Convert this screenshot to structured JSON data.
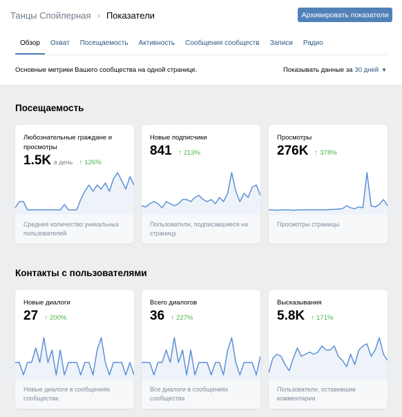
{
  "header": {
    "breadcrumb_parent": "Танцы Спойлерная",
    "breadcrumb_separator": "›",
    "breadcrumb_current": "Показатели",
    "archive_button": "Архивировать показатели"
  },
  "tabs": [
    {
      "label": "Обзор",
      "active": true
    },
    {
      "label": "Охват"
    },
    {
      "label": "Посещаемость"
    },
    {
      "label": "Активность"
    },
    {
      "label": "Сообщения сообществ"
    },
    {
      "label": "Записи"
    },
    {
      "label": "Радио"
    }
  ],
  "description": "Основные метрики Вашего сообщества на одной странице.",
  "period": {
    "label": "Показывать данные за",
    "value": "30 дней"
  },
  "sections": [
    {
      "title": "Посещаемость",
      "cards": [
        {
          "title": "Любознательные граждане и просмотры",
          "value": "1.5K",
          "unit": "в день",
          "growth": "126%",
          "footer": "Среднее количество уникальных пользователей",
          "sparkline": [
            0.1,
            0.25,
            0.25,
            0.05,
            0.05,
            0.05,
            0.05,
            0.05,
            0.05,
            0.05,
            0.05,
            0.05,
            0.18,
            0.05,
            0.05,
            0.05,
            0.3,
            0.5,
            0.65,
            0.5,
            0.65,
            0.55,
            0.7,
            0.5,
            0.8,
            0.95,
            0.75,
            0.55,
            0.85,
            0.65
          ]
        },
        {
          "title": "Новые подписчики",
          "value": "841",
          "unit": "",
          "growth": "213%",
          "footer": "Пользователи, подписавшиеся на страницу",
          "sparkline": [
            0.15,
            0.12,
            0.2,
            0.25,
            0.2,
            0.1,
            0.25,
            0.2,
            0.15,
            0.2,
            0.3,
            0.3,
            0.25,
            0.35,
            0.4,
            0.3,
            0.25,
            0.3,
            0.2,
            0.35,
            0.25,
            0.45,
            0.95,
            0.5,
            0.25,
            0.45,
            0.35,
            0.6,
            0.65,
            0.4
          ]
        },
        {
          "title": "Просмотры",
          "value": "276K",
          "unit": "",
          "growth": "378%",
          "footer": "Просмотры страницы",
          "sparkline": [
            0.05,
            0.05,
            0.04,
            0.05,
            0.05,
            0.05,
            0.04,
            0.05,
            0.05,
            0.05,
            0.05,
            0.05,
            0.05,
            0.05,
            0.05,
            0.06,
            0.06,
            0.07,
            0.08,
            0.15,
            0.1,
            0.08,
            0.12,
            0.1,
            0.95,
            0.15,
            0.12,
            0.18,
            0.3,
            0.15
          ]
        }
      ]
    },
    {
      "title": "Контакты с пользователями",
      "cards": [
        {
          "title": "Новые диалоги",
          "value": "27",
          "unit": "",
          "growth": "200%",
          "footer": "Новые диалоги в сообщениях сообщества",
          "sparkline": [
            0.35,
            0.35,
            0.05,
            0.35,
            0.35,
            0.7,
            0.35,
            0.95,
            0.35,
            0.65,
            0.05,
            0.65,
            0.05,
            0.35,
            0.35,
            0.35,
            0.05,
            0.35,
            0.35,
            0.05,
            0.65,
            0.95,
            0.35,
            0.05,
            0.35,
            0.35,
            0.35,
            0.05,
            0.35,
            0.05
          ]
        },
        {
          "title": "Всего диалогов",
          "value": "36",
          "unit": "",
          "growth": "227%",
          "footer": "Все диалоги в сообщениях сообщества",
          "sparkline": [
            0.35,
            0.35,
            0.35,
            0.05,
            0.35,
            0.35,
            0.65,
            0.35,
            0.95,
            0.35,
            0.65,
            0.05,
            0.65,
            0.05,
            0.35,
            0.35,
            0.35,
            0.05,
            0.35,
            0.35,
            0.05,
            0.65,
            0.95,
            0.35,
            0.05,
            0.35,
            0.35,
            0.35,
            0.05,
            0.5
          ]
        },
        {
          "title": "Высказывания",
          "value": "5.8K",
          "unit": "",
          "growth": "171%",
          "footer": "Пользователи, оставившие комментарии",
          "sparkline": [
            0.1,
            0.45,
            0.55,
            0.5,
            0.3,
            0.15,
            0.45,
            0.7,
            0.5,
            0.55,
            0.6,
            0.55,
            0.6,
            0.75,
            0.65,
            0.65,
            0.75,
            0.5,
            0.4,
            0.25,
            0.55,
            0.3,
            0.65,
            0.75,
            0.8,
            0.5,
            0.65,
            0.95,
            0.55,
            0.4
          ]
        }
      ]
    }
  ],
  "colors": {
    "accent": "#5181b8",
    "line": "#5b8fd4",
    "area": "#eef3fa",
    "growth": "#4bb34b"
  },
  "icons": {
    "growth": "arrow-up-icon",
    "period": "chevron-down-icon",
    "breadcrumb": "chevron-right-icon"
  }
}
